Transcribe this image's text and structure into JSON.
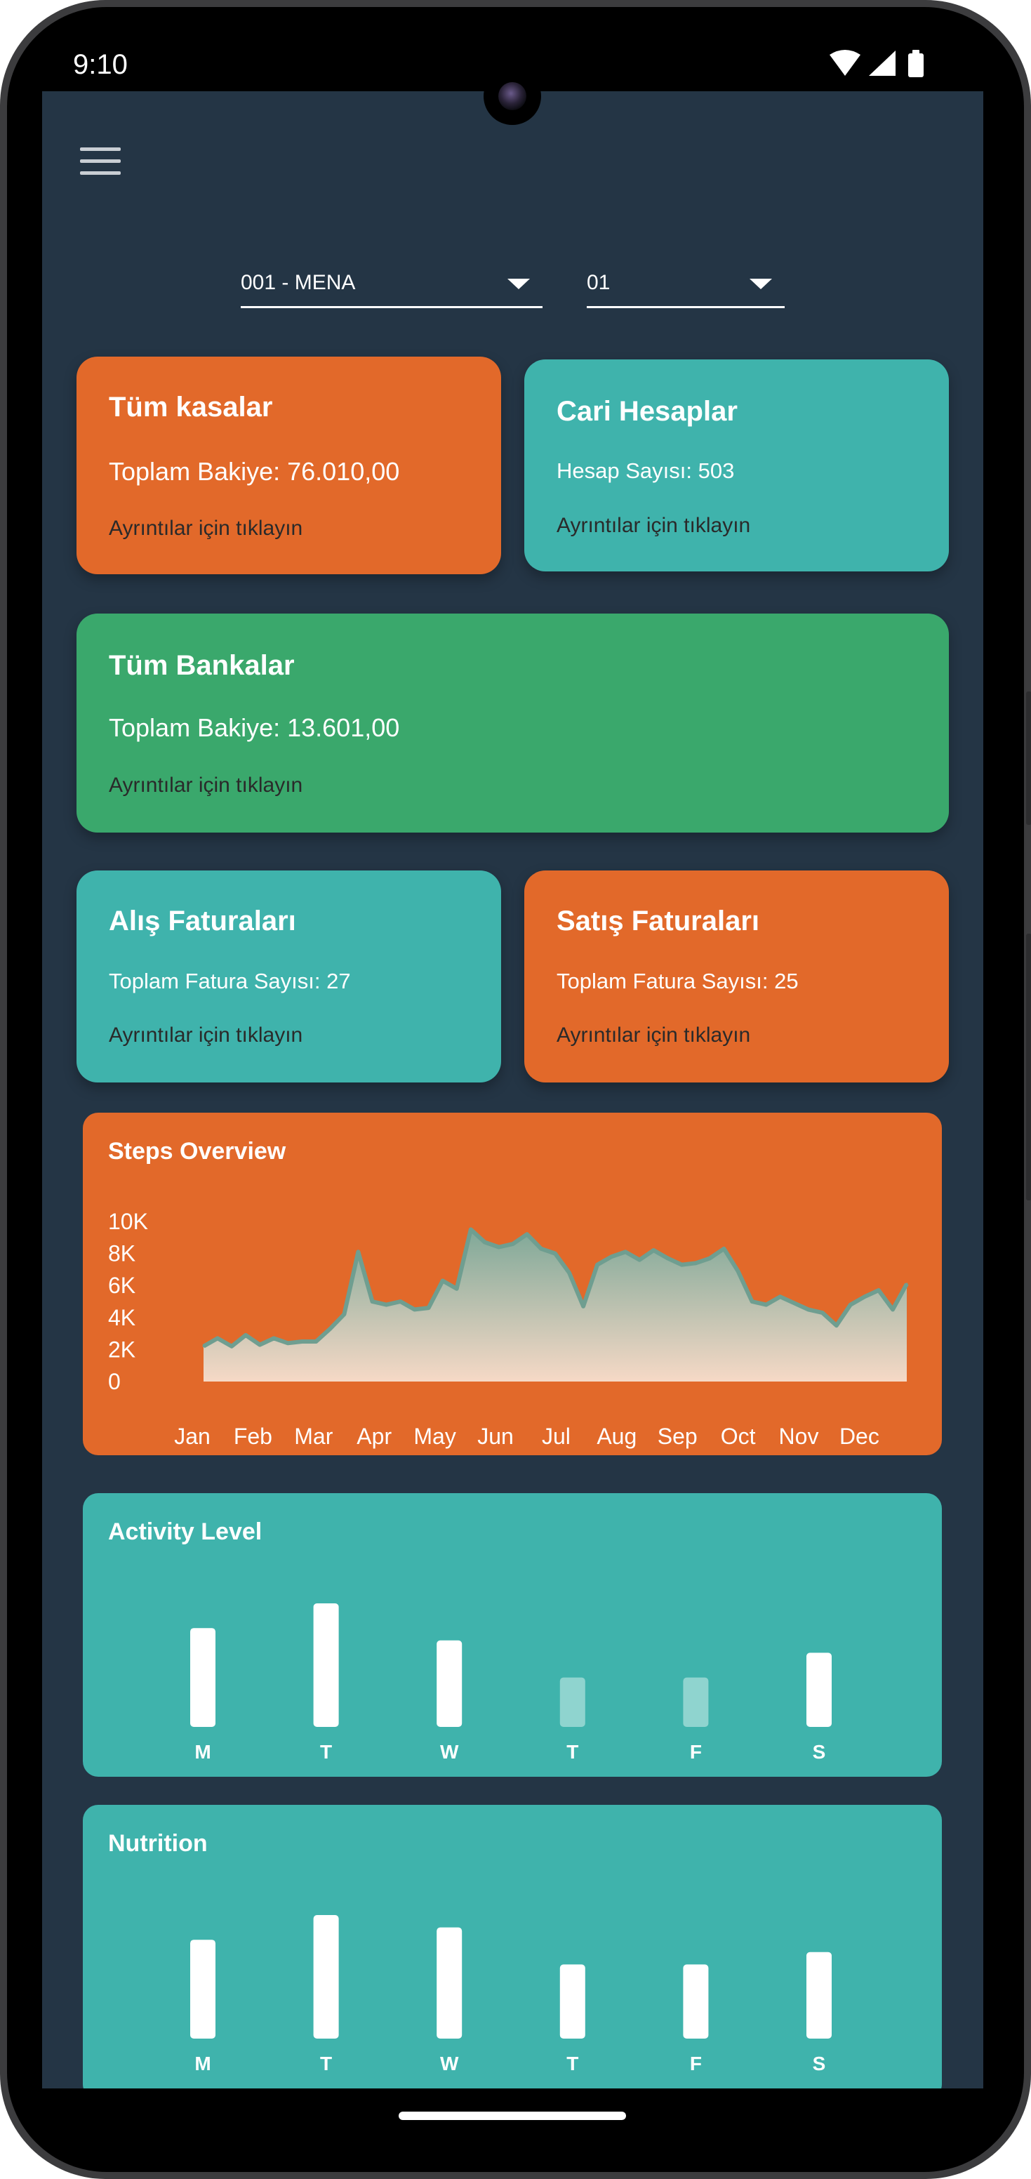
{
  "status_bar": {
    "time": "9:10"
  },
  "filters": {
    "company": "001 - MENA",
    "period": "01"
  },
  "cards": {
    "kasalar": {
      "title": "Tüm kasalar",
      "line": "Toplam Bakiye: 76.010,00",
      "hint": "Ayrıntılar için tıklayın"
    },
    "cari": {
      "title": "Cari Hesaplar",
      "line": "Hesap Sayısı: 503",
      "hint": "Ayrıntılar için tıklayın"
    },
    "bankalar": {
      "title": "Tüm Bankalar",
      "line": "Toplam Bakiye: 13.601,00",
      "hint": "Ayrıntılar için tıklayın"
    },
    "alis": {
      "title": "Alış Faturaları",
      "line": "Toplam Fatura Sayısı: 27",
      "hint": "Ayrıntılar için tıklayın"
    },
    "satis": {
      "title": "Satış Faturaları",
      "line": "Toplam Fatura Sayısı: 25",
      "hint": "Ayrıntılar için tıklayın"
    }
  },
  "colors": {
    "background": "#243545",
    "orange": "#e2692a",
    "teal": "#3fb3ac",
    "green": "#3aa86c"
  },
  "chart_data": [
    {
      "type": "area",
      "title": "Steps Overview",
      "xlabel": "",
      "ylabel": "",
      "y_ticks": [
        "10K",
        "8K",
        "6K",
        "4K",
        "2K",
        "0"
      ],
      "x_ticks": [
        "Jan",
        "Feb",
        "Mar",
        "Apr",
        "May",
        "Jun",
        "Jul",
        "Aug",
        "Sep",
        "Oct",
        "Nov",
        "Dec"
      ],
      "ylim": [
        0,
        10000
      ],
      "grid": false,
      "y": [
        2200,
        2700,
        2200,
        2900,
        2300,
        2700,
        2400,
        2500,
        2500,
        3300,
        4200,
        8100,
        5000,
        4800,
        5000,
        4500,
        4600,
        6300,
        5800,
        9500,
        8700,
        8400,
        8600,
        9200,
        8300,
        8000,
        6800,
        4700,
        7300,
        7800,
        8100,
        7600,
        8200,
        7700,
        7300,
        7400,
        7700,
        8300,
        6900,
        5000,
        4800,
        5300,
        4900,
        4500,
        4300,
        3500,
        4800,
        5300,
        5700,
        4500,
        6100
      ]
    },
    {
      "type": "bar",
      "title": "Activity Level",
      "categories": [
        "M",
        "T",
        "W",
        "T",
        "F",
        "S"
      ],
      "values": [
        80,
        100,
        70,
        40,
        40,
        60
      ],
      "ylim": [
        0,
        100
      ],
      "highlight_colors": [
        "#ffffff",
        "#ffffff",
        "#ffffff",
        "#8fd4cf",
        "#8fd4cf",
        "#ffffff"
      ]
    },
    {
      "type": "bar",
      "title": "Nutrition",
      "categories": [
        "M",
        "T",
        "W",
        "T",
        "F",
        "S"
      ],
      "values": [
        80,
        100,
        90,
        60,
        60,
        70
      ],
      "ylim": [
        0,
        100
      ],
      "highlight_colors": [
        "#ffffff",
        "#ffffff",
        "#ffffff",
        "#ffffff",
        "#ffffff",
        "#ffffff"
      ]
    }
  ]
}
